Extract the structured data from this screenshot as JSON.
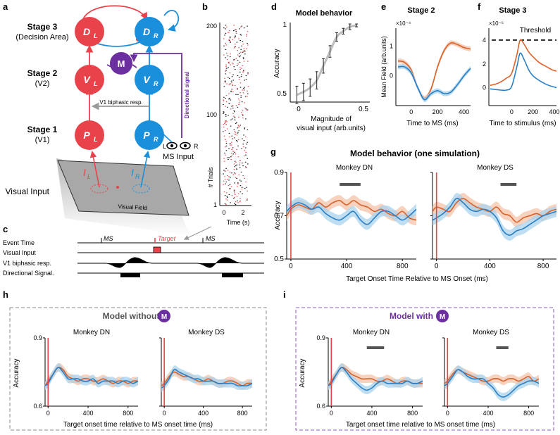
{
  "colors": {
    "red": "#e8434a",
    "blue": "#1a8fdc",
    "purple": "#6b2fa0",
    "orange": "#d9622b",
    "blue_line": "#2a7fc4",
    "orange_band": "#f4c3aa",
    "blue_band": "#a9d3ee",
    "gray": "#808080",
    "dark": "#222222"
  },
  "panel_a": {
    "label": "a",
    "stage3": {
      "title": "Stage 3",
      "sub": "(Decision Area)",
      "left_node": "D",
      "right_node": "D",
      "sub_l": "L",
      "sub_r": "R"
    },
    "stage2": {
      "title": "Stage 2",
      "sub": "(V2)",
      "left_node": "V",
      "right_node": "V",
      "sub_l": "L",
      "sub_r": "R"
    },
    "stage1": {
      "title": "Stage 1",
      "sub": "(V1)",
      "left_node": "P",
      "right_node": "P",
      "sub_l": "L",
      "sub_r": "R"
    },
    "m_node": "M",
    "biphasic_label": "V1 biphasic resp.",
    "directional_label": "Directional signal",
    "visual_input_label": "Visual Input",
    "visual_field_label": "Visual Field",
    "input_l": "I",
    "input_r": "I",
    "input_sub_l": "L",
    "input_sub_r": "R",
    "eye_l": "L",
    "eye_r": "R",
    "ms_input": "MS Input"
  },
  "panel_b": {
    "label": "b",
    "y_label": "# Trials",
    "y_ticks": [
      "1",
      "100",
      "200"
    ],
    "x_label": "Time (s)",
    "x_ticks": [
      "0",
      "2"
    ]
  },
  "panel_c": {
    "label": "c",
    "rows": [
      "Event Time",
      "Visual Input",
      "V1 biphasic resp.",
      "Directional Signal."
    ],
    "ms1": "MS",
    "target": "Target",
    "ms2": "MS"
  },
  "panel_d": {
    "label": "d",
    "title": "Model behavior",
    "y_label": "Accuracy",
    "y_ticks": [
      "0.5",
      "1"
    ],
    "x_ticks": [
      "0",
      "0.5"
    ],
    "x_label_1": "Magnitude of",
    "x_label_2": "visual input (arb.units)"
  },
  "panel_e": {
    "label": "e",
    "title": "Stage 2",
    "exponent": "×10⁻⁴",
    "y_label": "Mean Field (arb.units)",
    "y_ticks": [
      "0",
      "1"
    ],
    "x_ticks": [
      "0",
      "200",
      "400"
    ],
    "x_label": "Time to MS (ms)"
  },
  "panel_f": {
    "label": "f",
    "title": "Stage 3",
    "exponent": "×10⁻⁵",
    "threshold": "Threshold",
    "y_ticks": [
      "0",
      "2",
      "4"
    ],
    "x_ticks": [
      "0",
      "200",
      "400"
    ],
    "x_label": "Time to stimulus (ms)"
  },
  "panel_g": {
    "label": "g",
    "title": "Model behavior (one simulation)",
    "left_title": "Monkey DN",
    "right_title": "Monkey DS",
    "y_label": "Accuracy",
    "y_ticks": [
      "0.5",
      "0.7",
      "0.9"
    ],
    "x_ticks": [
      "0",
      "400",
      "800"
    ],
    "x_label": "Target Onset Time Relative to MS Onset (ms)"
  },
  "panel_h": {
    "label": "h",
    "title": "Model without",
    "m_badge": "M",
    "left_title": "Monkey DN",
    "right_title": "Monkey DS",
    "y_label": "Accuracy",
    "y_ticks": [
      "0.6",
      "0.9"
    ],
    "x_ticks": [
      "0",
      "400",
      "800"
    ],
    "x_label": "Target onset time relative to MS onset time (ms)"
  },
  "panel_i": {
    "label": "i",
    "title": "Model with",
    "m_badge": "M",
    "left_title": "Monkey DN",
    "right_title": "Monkey DS",
    "y_label": "Accuracy",
    "y_ticks": [
      "0.6",
      "0.9"
    ],
    "x_ticks": [
      "0",
      "400",
      "800"
    ],
    "x_label": "Target onset time relative to MS onset time (ms)"
  },
  "chart_data": [
    {
      "id": "d",
      "type": "line",
      "title": "Model behavior",
      "xlabel": "Magnitude of visual input (arb.units)",
      "ylabel": "Accuracy",
      "xlim": [
        -0.05,
        0.55
      ],
      "ylim": [
        0.45,
        1.0
      ],
      "x": [
        0.0,
        0.05,
        0.1,
        0.15,
        0.2,
        0.25,
        0.3,
        0.35,
        0.4,
        0.45
      ],
      "y": [
        0.5,
        0.52,
        0.55,
        0.6,
        0.7,
        0.8,
        0.9,
        0.94,
        0.97,
        0.98
      ],
      "err": [
        0.06,
        0.06,
        0.06,
        0.06,
        0.05,
        0.04,
        0.03,
        0.02,
        0.02,
        0.01
      ]
    },
    {
      "id": "e",
      "type": "line",
      "title": "Stage 2",
      "xlabel": "Time to MS (ms)",
      "ylabel": "Mean Field (arb.units)",
      "xlim": [
        -100,
        450
      ],
      "ylim": [
        -1.0,
        1.6
      ],
      "x": [
        -100,
        -50,
        0,
        50,
        100,
        150,
        200,
        250,
        300,
        350,
        400,
        450
      ],
      "series": [
        {
          "name": "orange",
          "values": [
            0.5,
            0.45,
            0.2,
            -0.4,
            -0.75,
            -0.45,
            0.3,
            0.85,
            1.1,
            1.05,
            0.95,
            0.9
          ]
        },
        {
          "name": "blue",
          "values": [
            0.3,
            0.3,
            0.1,
            -0.4,
            -0.8,
            -0.6,
            -0.5,
            -0.6,
            -0.55,
            -0.3,
            0.0,
            0.25
          ]
        }
      ]
    },
    {
      "id": "f",
      "type": "line",
      "title": "Stage 3",
      "xlabel": "Time to stimulus (ms)",
      "xlim": [
        -200,
        420
      ],
      "ylim": [
        -1.5,
        5
      ],
      "threshold": 4,
      "x": [
        -200,
        -150,
        -100,
        -50,
        0,
        50,
        80,
        120,
        160,
        200,
        260,
        320,
        380,
        420
      ],
      "series": [
        {
          "name": "orange",
          "values": [
            0.2,
            0.3,
            0.5,
            0.8,
            1.2,
            2.8,
            4.0,
            3.6,
            3.0,
            2.6,
            2.1,
            1.8,
            1.5,
            1.4
          ]
        },
        {
          "name": "blue",
          "values": [
            -0.1,
            -0.15,
            -0.2,
            -0.2,
            0.1,
            1.8,
            2.9,
            2.3,
            1.5,
            1.0,
            0.6,
            0.3,
            0.1,
            0.0
          ]
        }
      ]
    },
    {
      "id": "g",
      "type": "line",
      "title": "Model behavior (one simulation)",
      "xlabel": "Target Onset Time Relative to MS Onset (ms)",
      "ylabel": "Accuracy",
      "xlim": [
        -30,
        900
      ],
      "ylim": [
        0.5,
        0.9
      ],
      "x": [
        -30,
        0,
        50,
        100,
        150,
        200,
        250,
        300,
        350,
        400,
        450,
        500,
        550,
        600,
        650,
        700,
        750,
        800,
        850,
        900
      ],
      "panels": [
        {
          "name": "Monkey DN",
          "sig_bar": [
            350,
            500
          ],
          "series": [
            {
              "name": "orange",
              "values": [
                0.7,
                0.73,
                0.75,
                0.74,
                0.73,
                0.76,
                0.74,
                0.76,
                0.77,
                0.75,
                0.77,
                0.75,
                0.74,
                0.72,
                0.73,
                0.71,
                0.7,
                0.72,
                0.69,
                0.68
              ]
            },
            {
              "name": "blue",
              "values": [
                0.72,
                0.74,
                0.76,
                0.75,
                0.73,
                0.74,
                0.71,
                0.69,
                0.68,
                0.7,
                0.72,
                0.68,
                0.66,
                0.69,
                0.72,
                0.72,
                0.7,
                0.68,
                0.7,
                0.73
              ]
            }
          ]
        },
        {
          "name": "Monkey DS",
          "sig_bar": [
            480,
            600
          ],
          "series": [
            {
              "name": "orange",
              "values": [
                0.72,
                0.74,
                0.73,
                0.72,
                0.76,
                0.78,
                0.76,
                0.74,
                0.73,
                0.72,
                0.74,
                0.71,
                0.7,
                0.67,
                0.69,
                0.7,
                0.71,
                0.7,
                0.72,
                0.73
              ]
            },
            {
              "name": "blue",
              "values": [
                0.68,
                0.69,
                0.71,
                0.74,
                0.78,
                0.76,
                0.73,
                0.72,
                0.73,
                0.72,
                0.69,
                0.63,
                0.61,
                0.63,
                0.64,
                0.66,
                0.68,
                0.7,
                0.71,
                0.72
              ]
            }
          ]
        }
      ]
    },
    {
      "id": "h",
      "type": "line",
      "title": "Model without M",
      "xlabel": "Target onset time relative to MS onset time (ms)",
      "ylabel": "Accuracy",
      "xlim": [
        -30,
        900
      ],
      "ylim": [
        0.6,
        0.9
      ],
      "x": [
        -30,
        0,
        50,
        100,
        150,
        200,
        250,
        300,
        350,
        400,
        450,
        500,
        550,
        600,
        650,
        700,
        750,
        800,
        850,
        900
      ],
      "panels": [
        {
          "name": "Monkey DN",
          "series": [
            {
              "name": "orange",
              "values": [
                0.69,
                0.71,
                0.74,
                0.77,
                0.76,
                0.73,
                0.72,
                0.71,
                0.72,
                0.72,
                0.71,
                0.71,
                0.72,
                0.71,
                0.7,
                0.71,
                0.71,
                0.7,
                0.71,
                0.71
              ]
            },
            {
              "name": "blue",
              "values": [
                0.69,
                0.7,
                0.74,
                0.77,
                0.75,
                0.72,
                0.72,
                0.72,
                0.71,
                0.71,
                0.72,
                0.7,
                0.71,
                0.71,
                0.71,
                0.7,
                0.71,
                0.71,
                0.7,
                0.71
              ]
            }
          ]
        },
        {
          "name": "Monkey DS",
          "series": [
            {
              "name": "orange",
              "values": [
                0.69,
                0.7,
                0.73,
                0.75,
                0.74,
                0.73,
                0.73,
                0.72,
                0.71,
                0.71,
                0.72,
                0.71,
                0.7,
                0.7,
                0.71,
                0.71,
                0.7,
                0.69,
                0.7,
                0.7
              ]
            },
            {
              "name": "blue",
              "values": [
                0.68,
                0.69,
                0.72,
                0.76,
                0.75,
                0.74,
                0.73,
                0.72,
                0.72,
                0.71,
                0.71,
                0.71,
                0.7,
                0.7,
                0.7,
                0.7,
                0.69,
                0.69,
                0.69,
                0.7
              ]
            }
          ]
        }
      ]
    },
    {
      "id": "i",
      "type": "line",
      "title": "Model with M",
      "xlabel": "Target onset time relative to MS onset time (ms)",
      "ylabel": "Accuracy",
      "xlim": [
        -30,
        900
      ],
      "ylim": [
        0.6,
        0.9
      ],
      "x": [
        -30,
        0,
        50,
        100,
        150,
        200,
        250,
        300,
        350,
        400,
        450,
        500,
        550,
        600,
        650,
        700,
        750,
        800,
        850,
        900
      ],
      "panels": [
        {
          "name": "Monkey DN",
          "sig_bar": [
            350,
            520
          ],
          "series": [
            {
              "name": "orange",
              "values": [
                0.69,
                0.71,
                0.74,
                0.77,
                0.76,
                0.74,
                0.73,
                0.72,
                0.72,
                0.72,
                0.71,
                0.71,
                0.72,
                0.71,
                0.7,
                0.71,
                0.71,
                0.7,
                0.7,
                0.7
              ]
            },
            {
              "name": "blue",
              "values": [
                0.69,
                0.7,
                0.74,
                0.77,
                0.75,
                0.72,
                0.7,
                0.68,
                0.67,
                0.68,
                0.7,
                0.71,
                0.7,
                0.7,
                0.7,
                0.7,
                0.71,
                0.7,
                0.7,
                0.71
              ]
            }
          ]
        },
        {
          "name": "Monkey DS",
          "sig_bar": [
            480,
            600
          ],
          "series": [
            {
              "name": "orange",
              "values": [
                0.7,
                0.71,
                0.74,
                0.76,
                0.75,
                0.74,
                0.73,
                0.72,
                0.71,
                0.71,
                0.72,
                0.72,
                0.71,
                0.72,
                0.72,
                0.71,
                0.72,
                0.73,
                0.71,
                0.72
              ]
            },
            {
              "name": "blue",
              "values": [
                0.69,
                0.7,
                0.73,
                0.76,
                0.75,
                0.73,
                0.72,
                0.72,
                0.72,
                0.7,
                0.68,
                0.65,
                0.64,
                0.65,
                0.67,
                0.69,
                0.7,
                0.71,
                0.71,
                0.7
              ]
            }
          ]
        }
      ]
    }
  ]
}
